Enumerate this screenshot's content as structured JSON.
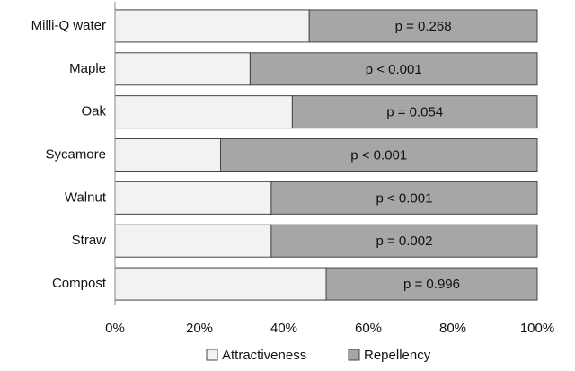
{
  "chart_data": {
    "type": "stacked-bar-horizontal",
    "categories": [
      "Milli-Q water",
      "Maple",
      "Oak",
      "Sycamore",
      "Walnut",
      "Straw",
      "Compost"
    ],
    "series": [
      {
        "name": "Attractiveness",
        "color": "#f2f2f2",
        "values": [
          46,
          32,
          42,
          25,
          37,
          37,
          50
        ]
      },
      {
        "name": "Repellency",
        "color": "#a6a6a6",
        "values": [
          54,
          68,
          58,
          75,
          63,
          63,
          50
        ]
      }
    ],
    "annotations": [
      "p = 0.268",
      "p < 0.001",
      "p = 0.054",
      "p < 0.001",
      "p < 0.001",
      "p = 0.002",
      "p = 0.996"
    ],
    "xlim": [
      0,
      100
    ],
    "xticks": [
      {
        "value": 0,
        "label": "0%"
      },
      {
        "value": 20,
        "label": "20%"
      },
      {
        "value": 40,
        "label": "40%"
      },
      {
        "value": 60,
        "label": "60%"
      },
      {
        "value": 80,
        "label": "80%"
      },
      {
        "value": 100,
        "label": "100%"
      }
    ],
    "grid": false,
    "legend": "bottom"
  }
}
